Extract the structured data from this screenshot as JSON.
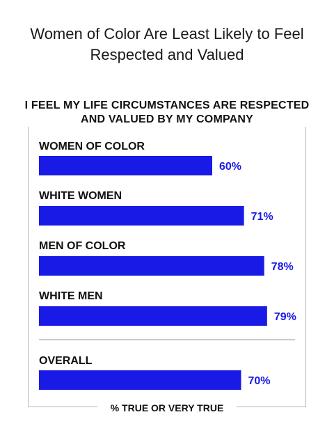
{
  "title": "Women of Color Are Least Likely to Feel Respected and Valued",
  "chart_data": {
    "type": "bar",
    "orientation": "horizontal",
    "title": "I FEEL MY LIFE CIRCUMSTANCES ARE RESPECTED AND VALUED BY MY COMPANY",
    "xlabel": "% TRUE OR VERY TRUE",
    "categories": [
      "WOMEN OF COLOR",
      "WHITE WOMEN",
      "MEN OF COLOR",
      "WHITE MEN",
      "OVERALL"
    ],
    "values": [
      60,
      71,
      78,
      79,
      70
    ],
    "value_labels": [
      "60%",
      "71%",
      "78%",
      "79%",
      "70%"
    ],
    "bar_color": "#1a1ae6",
    "value_label_color": "#1a1ae6",
    "grid": false,
    "legend": "none"
  }
}
